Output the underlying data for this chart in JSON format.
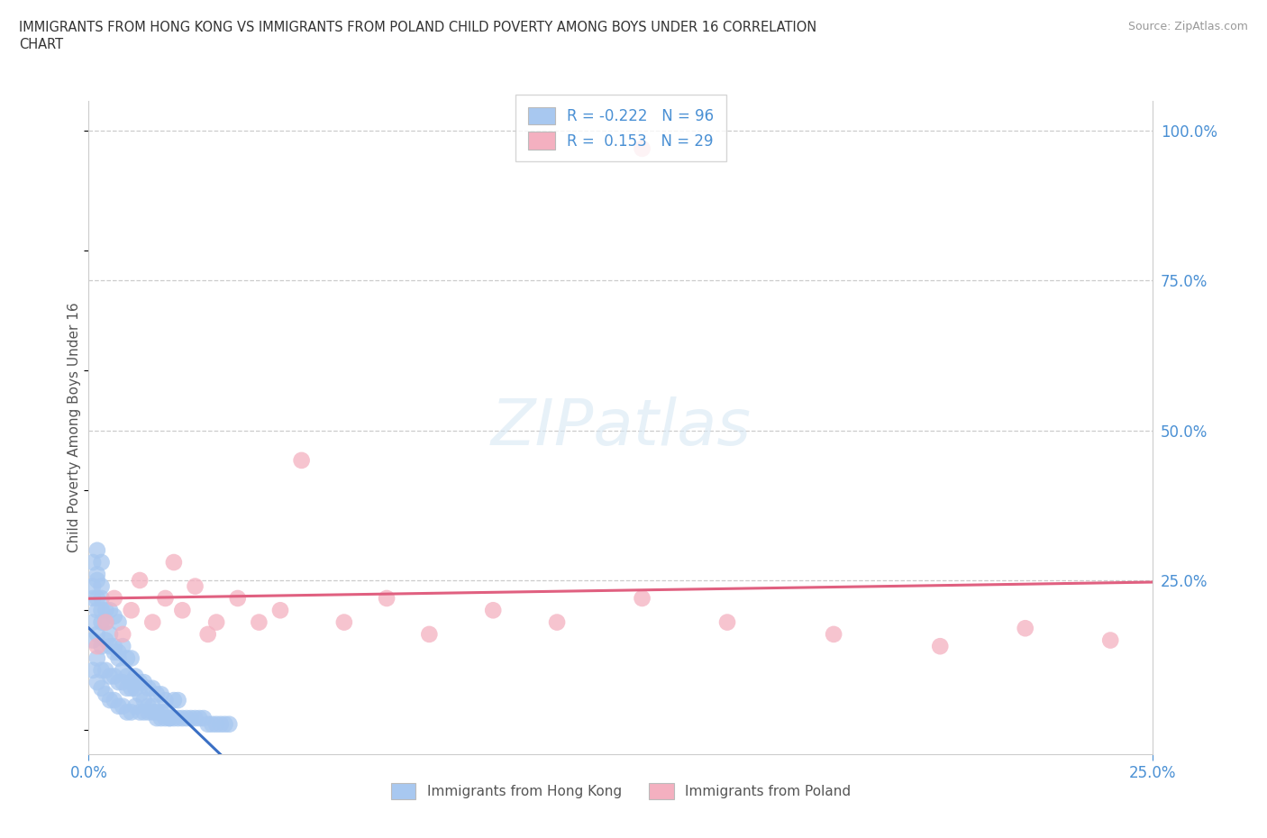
{
  "title_line1": "IMMIGRANTS FROM HONG KONG VS IMMIGRANTS FROM POLAND CHILD POVERTY AMONG BOYS UNDER 16 CORRELATION",
  "title_line2": "CHART",
  "source": "Source: ZipAtlas.com",
  "ylabel": "Child Poverty Among Boys Under 16",
  "hk_color": "#a8c8f0",
  "pl_color": "#f4b0c0",
  "hk_line_color": "#3a6fc4",
  "pl_line_color": "#e06080",
  "xmin": 0.0,
  "xmax": 0.25,
  "ymin": -0.04,
  "ymax": 1.05,
  "hk_N": 96,
  "pl_N": 29,
  "hk_R": -0.222,
  "pl_R": 0.153,
  "hk_x": [
    0.001,
    0.001,
    0.001,
    0.001,
    0.002,
    0.002,
    0.002,
    0.002,
    0.002,
    0.002,
    0.003,
    0.003,
    0.003,
    0.003,
    0.003,
    0.003,
    0.004,
    0.004,
    0.004,
    0.004,
    0.005,
    0.005,
    0.005,
    0.005,
    0.006,
    0.006,
    0.006,
    0.006,
    0.007,
    0.007,
    0.007,
    0.007,
    0.008,
    0.008,
    0.008,
    0.009,
    0.009,
    0.009,
    0.01,
    0.01,
    0.01,
    0.011,
    0.011,
    0.012,
    0.012,
    0.013,
    0.013,
    0.014,
    0.014,
    0.015,
    0.015,
    0.016,
    0.016,
    0.017,
    0.017,
    0.018,
    0.018,
    0.019,
    0.02,
    0.02,
    0.021,
    0.021,
    0.022,
    0.023,
    0.024,
    0.025,
    0.026,
    0.027,
    0.028,
    0.029,
    0.03,
    0.031,
    0.032,
    0.033,
    0.001,
    0.001,
    0.002,
    0.002,
    0.003,
    0.003,
    0.004,
    0.005,
    0.006,
    0.007,
    0.008,
    0.009,
    0.01,
    0.011,
    0.012,
    0.013,
    0.014,
    0.015,
    0.016,
    0.017,
    0.018,
    0.019
  ],
  "hk_y": [
    0.1,
    0.15,
    0.18,
    0.22,
    0.08,
    0.12,
    0.16,
    0.2,
    0.25,
    0.3,
    0.07,
    0.1,
    0.14,
    0.18,
    0.22,
    0.28,
    0.06,
    0.1,
    0.15,
    0.2,
    0.05,
    0.09,
    0.14,
    0.2,
    0.05,
    0.09,
    0.13,
    0.19,
    0.04,
    0.08,
    0.13,
    0.18,
    0.04,
    0.08,
    0.14,
    0.03,
    0.07,
    0.12,
    0.03,
    0.07,
    0.12,
    0.04,
    0.09,
    0.03,
    0.08,
    0.03,
    0.08,
    0.03,
    0.07,
    0.03,
    0.07,
    0.02,
    0.06,
    0.02,
    0.06,
    0.02,
    0.05,
    0.02,
    0.02,
    0.05,
    0.02,
    0.05,
    0.02,
    0.02,
    0.02,
    0.02,
    0.02,
    0.02,
    0.01,
    0.01,
    0.01,
    0.01,
    0.01,
    0.01,
    0.24,
    0.28,
    0.22,
    0.26,
    0.2,
    0.24,
    0.18,
    0.16,
    0.14,
    0.12,
    0.1,
    0.09,
    0.08,
    0.07,
    0.06,
    0.05,
    0.04,
    0.04,
    0.03,
    0.03,
    0.03,
    0.02
  ],
  "pl_x": [
    0.002,
    0.004,
    0.006,
    0.008,
    0.01,
    0.012,
    0.015,
    0.018,
    0.02,
    0.022,
    0.025,
    0.028,
    0.03,
    0.035,
    0.04,
    0.045,
    0.05,
    0.06,
    0.07,
    0.08,
    0.095,
    0.11,
    0.13,
    0.15,
    0.175,
    0.2,
    0.22,
    0.24,
    0.13
  ],
  "pl_y": [
    0.14,
    0.18,
    0.22,
    0.16,
    0.2,
    0.25,
    0.18,
    0.22,
    0.28,
    0.2,
    0.24,
    0.16,
    0.18,
    0.22,
    0.18,
    0.2,
    0.45,
    0.18,
    0.22,
    0.16,
    0.2,
    0.18,
    0.22,
    0.18,
    0.16,
    0.14,
    0.17,
    0.15,
    0.97
  ]
}
